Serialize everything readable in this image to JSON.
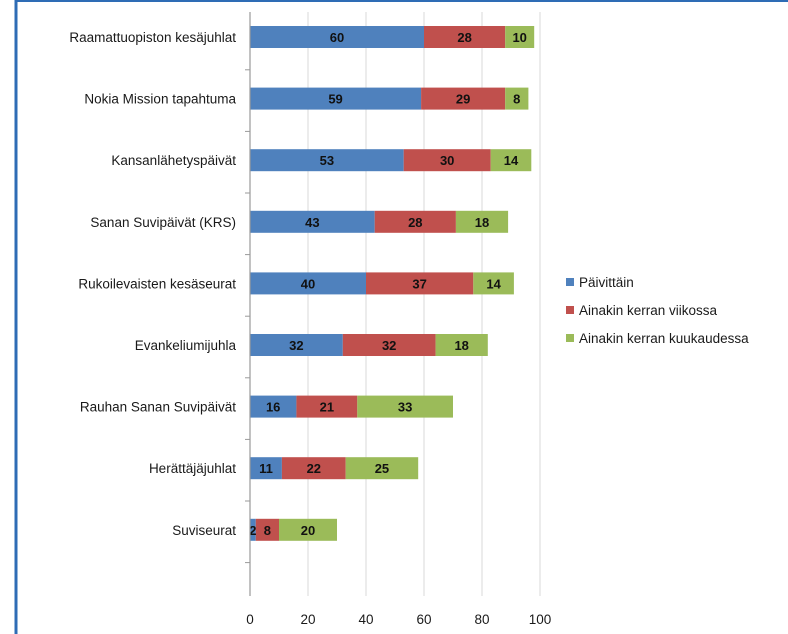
{
  "chart_data": {
    "type": "bar",
    "orientation": "horizontal",
    "stacked": true,
    "title": "",
    "xlabel": "",
    "ylabel": "",
    "xlim": [
      0,
      100
    ],
    "x_ticks": [
      0,
      20,
      40,
      60,
      80,
      100
    ],
    "grid": true,
    "legend_position": "right",
    "categories": [
      "Raamattuopiston kesäjuhlat",
      "Nokia Mission tapahtuma",
      "Kansanlähetyspäivät",
      "Sanan Suvipäivät (KRS)",
      "Rukoilevaisten kesäseurat",
      "Evankeliumijuhla",
      "Rauhan Sanan Suvipäivät",
      "Herättäjäjuhlat",
      "Suviseurat"
    ],
    "series": [
      {
        "name": "Päivittäin",
        "color": "#4f81bd",
        "values": [
          60,
          59,
          53,
          43,
          40,
          32,
          16,
          11,
          2
        ]
      },
      {
        "name": "Ainakin kerran viikossa",
        "color": "#c0504d",
        "values": [
          28,
          29,
          30,
          28,
          37,
          32,
          21,
          22,
          8
        ]
      },
      {
        "name": "Ainakin kerran kuukaudessa",
        "color": "#9bbb59",
        "values": [
          10,
          8,
          14,
          18,
          14,
          18,
          33,
          25,
          20
        ]
      }
    ]
  },
  "colors": {
    "frame_border": "#2e6cb5",
    "axis": "#9a9a9a",
    "gridline": "#d9d9d9"
  }
}
